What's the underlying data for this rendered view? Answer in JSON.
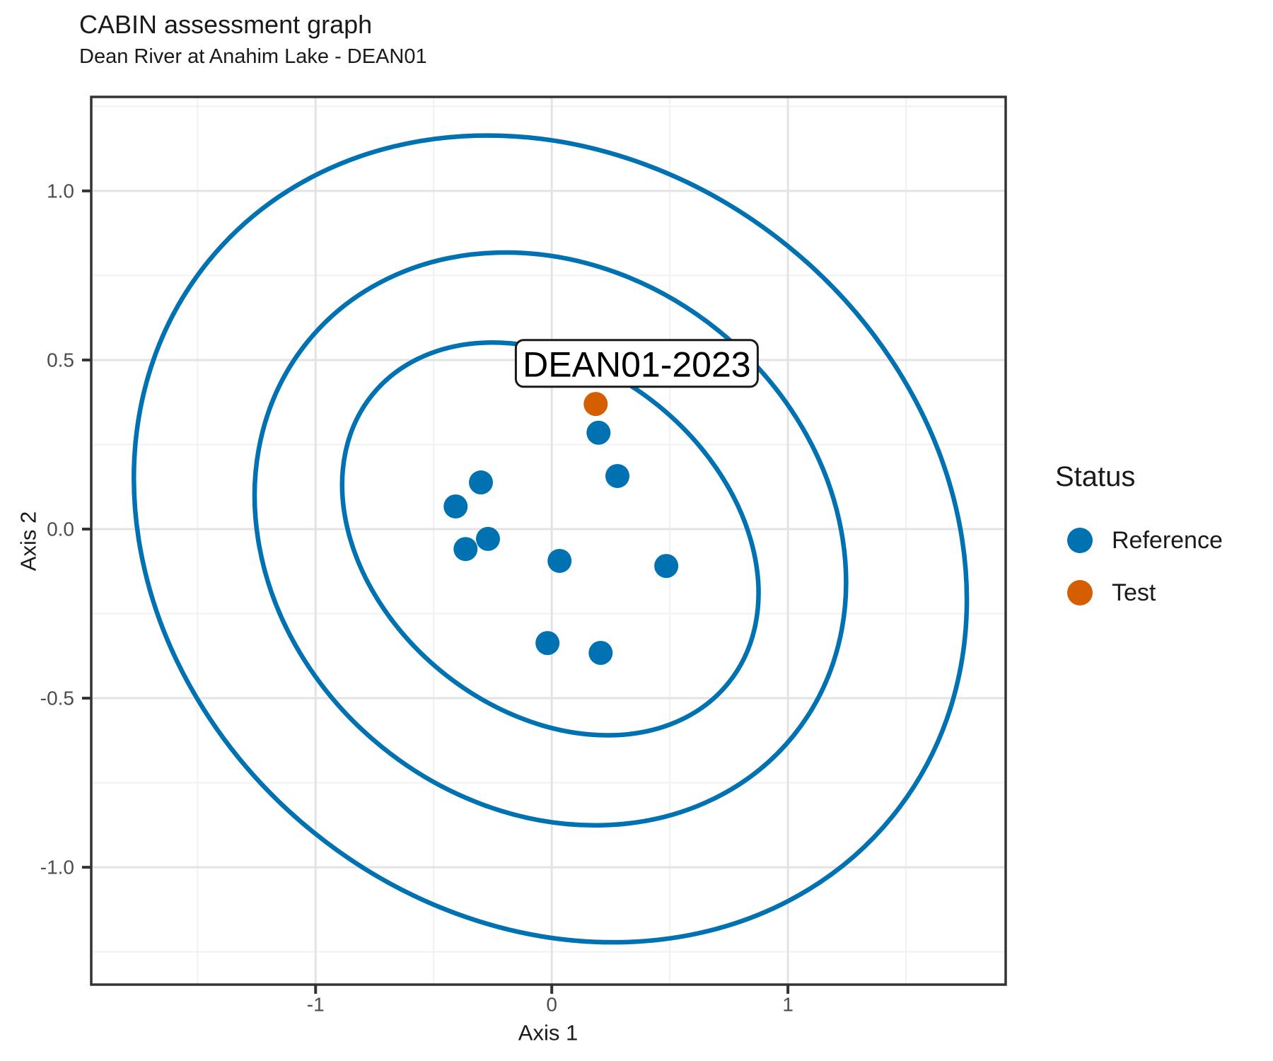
{
  "chart_data": {
    "type": "scatter",
    "title": "CABIN assessment graph",
    "subtitle": "Dean River at Anahim Lake - DEAN01",
    "xlabel": "Axis 1",
    "ylabel": "Axis 2",
    "xlim": [
      -1.95,
      1.922
    ],
    "ylim": [
      -1.347,
      1.278
    ],
    "grid": "on",
    "x_major_ticks": [
      -1,
      0,
      1
    ],
    "x_tick_labels": [
      "-1",
      "0",
      "1"
    ],
    "x_minor_ticks": [
      -1.5,
      -0.5,
      0.5,
      1.5
    ],
    "y_major_ticks": [
      1.0,
      0.5,
      0.0,
      -0.5,
      -1.0
    ],
    "y_tick_labels": [
      "1.0",
      "0.5",
      "0.0",
      "-0.5",
      "-1.0"
    ],
    "y_minor_ticks": [
      1.25,
      0.75,
      0.25,
      -0.25,
      -0.75,
      -1.25
    ],
    "series": [
      {
        "name": "Reference",
        "color": "#0072B2",
        "points": [
          [
            -0.3,
            0.138
          ],
          [
            -0.407,
            0.067
          ],
          [
            -0.365,
            -0.059
          ],
          [
            -0.27,
            -0.029
          ],
          [
            0.033,
            -0.094
          ],
          [
            0.198,
            0.285
          ],
          [
            0.278,
            0.157
          ],
          [
            0.485,
            -0.109
          ],
          [
            -0.018,
            -0.337
          ],
          [
            0.207,
            -0.366
          ]
        ]
      },
      {
        "name": "Test",
        "color": "#D55E00",
        "points": [
          [
            0.186,
            0.37
          ]
        ]
      }
    ],
    "ellipses": {
      "comment": "three concentric confidence ellipses around reference sites",
      "color": "#0072B2",
      "stroke_width": 6.5,
      "center": {
        "x": -0.006,
        "y": -0.029
      },
      "rx": 1.865,
      "ry": 1.115,
      "rotation_deg": 39,
      "scales": [
        {
          "sx": 1.0,
          "sy": 1.0
        },
        {
          "sx": 0.71,
          "sy": 0.71
        },
        {
          "sx": 0.52,
          "sy": 0.455
        }
      ]
    },
    "annotation": {
      "text": "DEAN01-2023",
      "point_x": 0.186,
      "point_y": 0.37,
      "box_x": 0.36,
      "box_y": 0.49
    },
    "legend": {
      "title": "Status",
      "position": "right",
      "items": [
        {
          "label": "Reference",
          "color": "#0072B2"
        },
        {
          "label": "Test",
          "color": "#D55E00"
        }
      ]
    },
    "colors": {
      "grid_major": "#e3e3e3",
      "grid_minor": "#f1f1f1",
      "panel_border": "#333333",
      "tick_mark": "#333333",
      "tick_label": "#4d4d4d",
      "axis_title": "#1a1a1a",
      "annotation_border": "#1a1a1a",
      "annotation_fill": "#ffffff"
    }
  }
}
